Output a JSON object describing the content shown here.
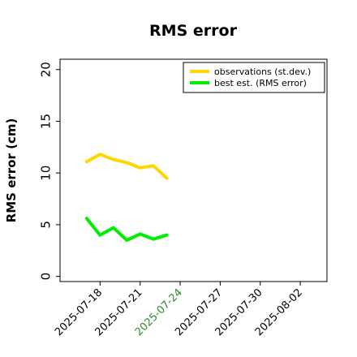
{
  "chart_data": {
    "type": "line",
    "title": "RMS error",
    "ylabel": "RMS error (cm)",
    "xlabel": "",
    "ylim": [
      -0.5,
      21
    ],
    "yticks": [
      0,
      5,
      10,
      15,
      20
    ],
    "xlim": [
      "2025-07-15",
      "2025-08-04"
    ],
    "xticks": [
      {
        "date": "2025-07-18",
        "label": "2025-07-18",
        "color": "#000000"
      },
      {
        "date": "2025-07-21",
        "label": "2025-07-21",
        "color": "#000000"
      },
      {
        "date": "2025-07-24",
        "label": "2025-07-24",
        "color": "#2e8b2e"
      },
      {
        "date": "2025-07-27",
        "label": "2025-07-27",
        "color": "#000000"
      },
      {
        "date": "2025-07-30",
        "label": "2025-07-30",
        "color": "#000000"
      },
      {
        "date": "2025-08-02",
        "label": "2025-08-02",
        "color": "#000000"
      }
    ],
    "grid": false,
    "legend_position": "top-right",
    "series": [
      {
        "name": "observations (st.dev.)",
        "color": "#ffd700",
        "x": [
          "2025-07-17",
          "2025-07-18",
          "2025-07-19",
          "2025-07-20",
          "2025-07-21",
          "2025-07-22",
          "2025-07-23"
        ],
        "values": [
          11.1,
          11.8,
          11.3,
          11.0,
          10.5,
          10.7,
          9.5
        ]
      },
      {
        "name": "best est. (RMS error)",
        "color": "#00ee00",
        "x": [
          "2025-07-17",
          "2025-07-18",
          "2025-07-19",
          "2025-07-20",
          "2025-07-21",
          "2025-07-22",
          "2025-07-23"
        ],
        "values": [
          5.6,
          4.0,
          4.7,
          3.5,
          4.1,
          3.6,
          4.0
        ]
      }
    ]
  }
}
